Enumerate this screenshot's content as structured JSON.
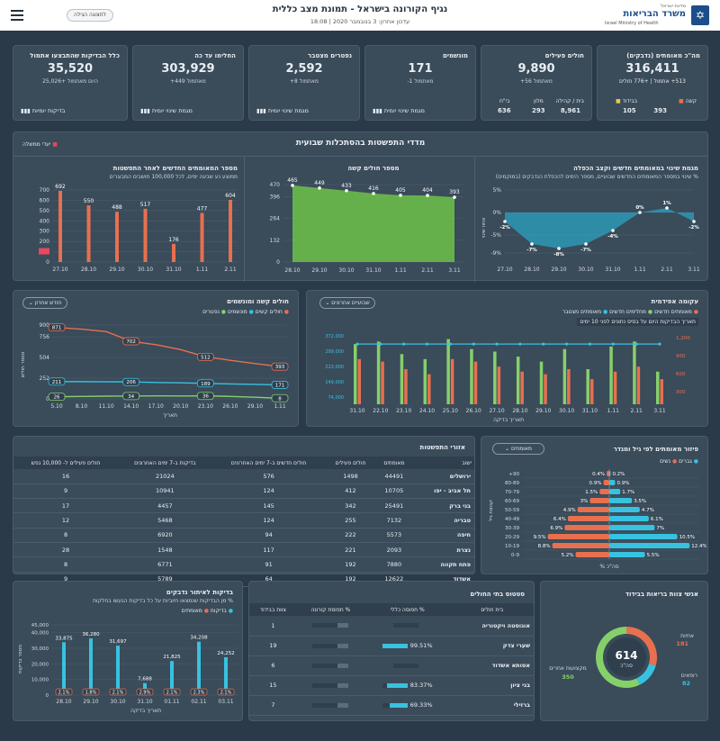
{
  "header": {
    "title": "נגיף הקורונה בישראל - תמונת מצב כללית",
    "updated": "עדכון אחרון: 3 בנובמבר 2020 | 18:08",
    "button_label": "לתצוגה הגילה",
    "ministry_top": "מדינת ישראל",
    "ministry_name": "משרד הבריאות",
    "ministry_en": "Israel Ministry of Health"
  },
  "kpis": [
    {
      "title": "מה\"כ מאומתים (נדבקים)",
      "value": "316,411",
      "sub1": "+776",
      "sub1_label": "חולים",
      "sub2": "513+ אתמול",
      "tag1": "בבידוד",
      "tag1_val": "105",
      "tag2": "קשה",
      "tag2_val": "393"
    },
    {
      "title": "חולים פעילים",
      "value": "9,890",
      "sub": "+56 מאתמול",
      "line1_a": "בית / קהילה",
      "line1_b": "8,961",
      "line2_a": "מלון",
      "line2_b": "293",
      "line3_a": "בי\"ח",
      "line3_b": "636"
    },
    {
      "title": "מונשמים",
      "value": "171",
      "sub": "-1 מאתמול",
      "btn": "מגמת שינוי יומית"
    },
    {
      "title": "נפטרים מצטבר",
      "value": "2,592",
      "sub": "+8 מאתמול",
      "btn": "מגמת שינוי יומית"
    },
    {
      "title": "החלימו עד כה",
      "value": "303,929",
      "sub": "+449 מאתמול",
      "btn": "מגמת שינוי יומית"
    },
    {
      "title": "כלל הבדיקות שהתבצעו אתמול",
      "value": "35,520",
      "sub": "25,026+ היום מאתמול",
      "btn": "בדיקות יומיות"
    }
  ],
  "weekly": {
    "title": "מדדי התפשטות בהסתכלות שבועית",
    "goals": "יעדי ממשלה",
    "chart1": {
      "title": "מגמת שינוי במאומתים חדשים וקצב הכפלה",
      "note": "% שינוי במספר המאומתים החדשים שבועיים, מספר הימים להכפלת הנדבקים (במוקמים)",
      "ylabel": "אחוז שינוי"
    },
    "chart2": {
      "title": "מספר חולים קשה"
    },
    "chart3": {
      "title": "מספר המאומתים החדשים לאחר התפשטות",
      "note": "ממוצע נע שבעה ימים, לכל 100,000 תושבים המבוגרים"
    }
  },
  "chart_data": [
    {
      "type": "line",
      "title": "מגמת שינוי במאומתים חדשים וקצב הכפלה",
      "categories": [
        "27.10",
        "28.10",
        "29.10",
        "30.10",
        "31.10",
        "1.11",
        "2.11",
        "3.11"
      ],
      "values": [
        -2,
        -7,
        -8,
        -7,
        -4,
        0,
        1,
        -2
      ],
      "labels": [
        "-2%",
        "-7%",
        "-8%",
        "-7%",
        "-4%",
        "0%",
        "1%",
        "-2%"
      ],
      "ylim": [
        -9,
        5
      ]
    },
    {
      "type": "area",
      "title": "מספר חולים קשה",
      "categories": [
        "28.10",
        "29.10",
        "30.10",
        "31.10",
        "1.11",
        "2.11",
        "3.11"
      ],
      "values": [
        465,
        449,
        433,
        416,
        405,
        404,
        393
      ],
      "yticks": [
        0,
        132,
        264,
        396,
        470
      ],
      "ylim": [
        0,
        470
      ]
    },
    {
      "type": "bar",
      "title": "מספר המאומתים החדשים",
      "categories": [
        "27.10",
        "28.10",
        "29.10",
        "30.10",
        "31.10",
        "1.11",
        "2.11"
      ],
      "values": [
        692,
        550,
        488,
        517,
        176,
        477,
        604
      ],
      "yticks": [
        0,
        100,
        200,
        300,
        400,
        500,
        600,
        700
      ],
      "ylim": [
        0,
        700
      ]
    },
    {
      "type": "line",
      "title": "חולים קשה ומונשמים",
      "categories": [
        "5.10",
        "8.10",
        "11.10",
        "14.10",
        "17.10",
        "20.10",
        "23.10",
        "26.10",
        "29.10",
        "1.11"
      ],
      "series": [
        {
          "name": "חולים קשה",
          "labels": {
            "0": "871",
            "3": "702",
            "6": "512",
            "9": "393"
          },
          "values": [
            871,
            850,
            820,
            702,
            660,
            600,
            512,
            470,
            430,
            393
          ]
        },
        {
          "name": "מונשמים",
          "labels": {
            "0": "211",
            "3": "206",
            "6": "189",
            "9": "171"
          },
          "values": [
            211,
            210,
            208,
            206,
            200,
            195,
            189,
            182,
            176,
            171
          ]
        },
        {
          "name": "נפטרים",
          "labels": {
            "0": "26",
            "3": "34",
            "6": "36",
            "9": "8"
          },
          "values": [
            26,
            30,
            33,
            34,
            36,
            35,
            36,
            30,
            20,
            8
          ]
        }
      ],
      "yticks": [
        0,
        252,
        504,
        756,
        900
      ],
      "ylim": [
        0,
        900
      ],
      "xlabel": "תאריך",
      "ylabel": "מספר חולים"
    },
    {
      "type": "bar",
      "title": "עקומה אפידמית",
      "categories": [
        "31.10",
        "22.10",
        "23.10",
        "24.10",
        "25.10",
        "26.10",
        "27.10",
        "28.10",
        "29.10",
        "30.10",
        "31.10",
        "1.11",
        "2.11",
        "3.11"
      ],
      "xticks": [
        "31.10",
        "22.10",
        "23.10",
        "24.10",
        "25.10",
        "26.10",
        "27.10",
        "28.10",
        "29.10",
        "30.10",
        "31.10",
        "1.11",
        "2.11",
        "3.11"
      ],
      "series": [
        {
          "name": "מחלימים חדשים",
          "values": [
            1200,
            1250,
            1000,
            900,
            1300,
            1100,
            1050,
            950,
            850,
            1100,
            700,
            1150,
            1250,
            650
          ]
        },
        {
          "name": "מאומתים חדשים",
          "values": [
            900,
            850,
            700,
            600,
            900,
            850,
            750,
            650,
            600,
            700,
            500,
            650,
            750,
            500
          ]
        }
      ],
      "y2": [
        1200,
        1200,
        1200,
        1200,
        1200,
        1200,
        1200,
        1200,
        1200,
        1200,
        1200,
        1200,
        1200,
        1200
      ],
      "xlabel": "תאריך בדיקה"
    },
    {
      "type": "bar",
      "title": "פיזור מאומתים לפי גיל ומגדר",
      "categories": [
        "+90",
        "80-89",
        "70-79",
        "60-69",
        "50-59",
        "40-49",
        "30-39",
        "20-29",
        "10-19",
        "0-9"
      ],
      "series": [
        {
          "name": "גברים",
          "values": [
            0.2,
            0.9,
            1.7,
            3.5,
            4.7,
            6.1,
            7,
            10.5,
            12.4,
            5.5
          ]
        },
        {
          "name": "נשים",
          "values": [
            0.4,
            0.9,
            1.5,
            3,
            4.9,
            6.4,
            6.9,
            9.5,
            8.8,
            5.2
          ]
        }
      ],
      "xlabel": "% סה\"כ"
    },
    {
      "type": "bar",
      "title": "בדיקות לאיתור נדבקים",
      "categories": [
        "28.10",
        "29.10",
        "30.10",
        "31.10",
        "01.11",
        "02.11",
        "03.11"
      ],
      "values": [
        33875,
        36280,
        31697,
        7688,
        21825,
        34208,
        24252
      ],
      "line": [
        2.1,
        1.8,
        2.1,
        2.9,
        2.1,
        2.3,
        2.1
      ],
      "yticks": [
        0,
        10000,
        20000,
        30000,
        40000,
        45000
      ],
      "ylim": [
        0,
        45000
      ],
      "xlabel": "תאריך בדיקה"
    }
  ],
  "severe_chart": {
    "title": "חולים קשה ומונשמים",
    "btn": "חודש אחרון",
    "legend": [
      "חולים קשים",
      "מונשמים",
      "נפטרים"
    ]
  },
  "epi_chart": {
    "title": "עקומה אפידמית",
    "btn": "שבועיים אחרונים",
    "legend": [
      "מאומתים חדשים",
      "מחלימים חדשים",
      "מאומתים מצטבר"
    ],
    "note": "תאריך הבדיקות היום על בסיס נתונים לפני 10 ימים",
    "y2ticks": [
      "1,200",
      "900",
      "600",
      "300"
    ],
    "y1ticks": [
      "372,000",
      "299,000",
      "223,000",
      "149,000",
      "74,000"
    ]
  },
  "cities": {
    "title": "אזורי התפשטות",
    "columns": [
      "ישוב",
      "מאומתים",
      "חולים פעילים",
      "חולים חדשים ב-7 ימים האחרונים",
      "בדיקות ב-7 ימים האחרונים",
      "חולים פעילים ל- 10,000 נפש"
    ],
    "rows": [
      [
        "ירושלים",
        "44491",
        "1498",
        "576",
        "21024",
        "16"
      ],
      [
        "תל אביב - יפו",
        "10705",
        "412",
        "124",
        "10941",
        "9"
      ],
      [
        "בני ברק",
        "25491",
        "342",
        "145",
        "4457",
        "17"
      ],
      [
        "טבריה",
        "7132",
        "255",
        "124",
        "5468",
        "12"
      ],
      [
        "חיפה",
        "5573",
        "222",
        "94",
        "6920",
        "8"
      ],
      [
        "נצרת",
        "2093",
        "221",
        "117",
        "1548",
        "28"
      ],
      [
        "פתח תקווה",
        "7880",
        "192",
        "91",
        "6771",
        "8"
      ],
      [
        "אשדוד",
        "12622",
        "192",
        "64",
        "5789",
        "9"
      ]
    ]
  },
  "age": {
    "title": "פיזור מאומתים לפי גיל ומגדר",
    "btn": "מאומתים",
    "legend": [
      "גברים",
      "נשים"
    ],
    "ylabel": "קבוצת גיל",
    "xlabel": "% סה\"כ",
    "men": [
      "0.2%",
      "0.9%",
      "1.7%",
      "3.5%",
      "4.7%",
      "6.1%",
      "7%",
      "10.5%",
      "12.4%",
      "5.5%"
    ],
    "women": [
      "0.4%",
      "0.9%",
      "1.5%",
      "3%",
      "4.9%",
      "6.4%",
      "6.9%",
      "9.5%",
      "8.8%",
      "5.2%"
    ]
  },
  "tests": {
    "title": "בדיקות לאיתור נדבקים",
    "note": "% מן הבדיקות שנמצאו חיוביות על כל בדיקות הנעשו בחלקות",
    "legend": [
      "בדיקות",
      "מאומתים"
    ],
    "values": [
      "33,875",
      "36,280",
      "31,697",
      "7,688",
      "21,825",
      "34,208",
      "24,252"
    ],
    "pcts": [
      "2.1%",
      "1.8%",
      "2.1%",
      "2.9%",
      "2.1%",
      "2.3%",
      "2.1%"
    ],
    "yticks": [
      "45,000",
      "40,000",
      "30,000",
      "20,000",
      "10,000",
      "0"
    ],
    "ylabel": "מספר בדיקות",
    "xlabel": "תאריך בדיקה"
  },
  "hospitals": {
    "title": "סטטוס בתי החולים",
    "columns": [
      "בית חולים",
      "% תפוסה כללי",
      "% תפוסת קורונה",
      "צוות בבידוד"
    ],
    "rows": [
      {
        "name": "אוגוסטה ויקטוריה",
        "occ": "",
        "occ_v": 0,
        "cov": "",
        "cov_v": 0.3,
        "staff": "1"
      },
      {
        "name": "שערי צדק",
        "occ": "99.51%",
        "occ_v": 0.99,
        "cov": "",
        "cov_v": 0.3,
        "staff": "19"
      },
      {
        "name": "אסותא אשדוד",
        "occ": "",
        "occ_v": 0,
        "cov": "",
        "cov_v": 0.3,
        "staff": "6"
      },
      {
        "name": "בני ציון",
        "occ": "83.37%",
        "occ_v": 0.83,
        "cov": "",
        "cov_v": 0.3,
        "staff": "15"
      },
      {
        "name": "ברזילי",
        "occ": "69.33%",
        "occ_v": 0.69,
        "cov": "",
        "cov_v": 0.3,
        "staff": "7"
      }
    ]
  },
  "staff": {
    "title": "אנשי צוות בריאות בבידוד",
    "total": "614",
    "total_label": "סה\"כ",
    "doctors_label": "אחיות",
    "doctors": "181",
    "nurses_label": "רופאים",
    "nurses": "82",
    "other_label": "מקצועות אחרים",
    "other": "350",
    "colors": {
      "doctors": "#e8704e",
      "nurses": "#37c2e0",
      "other": "#86d06a"
    }
  }
}
